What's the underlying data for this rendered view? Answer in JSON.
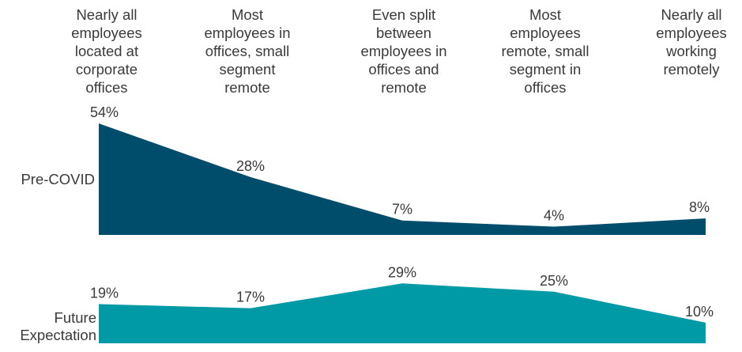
{
  "chart_data": {
    "type": "area",
    "categories": [
      "Nearly all employees located at corporate offices",
      "Most employees in offices, small segment remote",
      "Even split between employees in offices and remote",
      "Most employees remote, small segment in offices",
      "Nearly all employees working remotely"
    ],
    "series": [
      {
        "name": "Pre-COVID",
        "values": [
          54,
          28,
          7,
          4,
          8
        ],
        "labels": [
          "54%",
          "28%",
          "7%",
          "4%",
          "8%"
        ],
        "color": "#004d6b"
      },
      {
        "name": "Future Expectation",
        "values": [
          19,
          17,
          29,
          25,
          10
        ],
        "labels": [
          "19%",
          "17%",
          "29%",
          "25%",
          "10%"
        ],
        "color": "#009aa6"
      }
    ],
    "unit": "%",
    "grid": false,
    "legend": "row labels at left"
  }
}
